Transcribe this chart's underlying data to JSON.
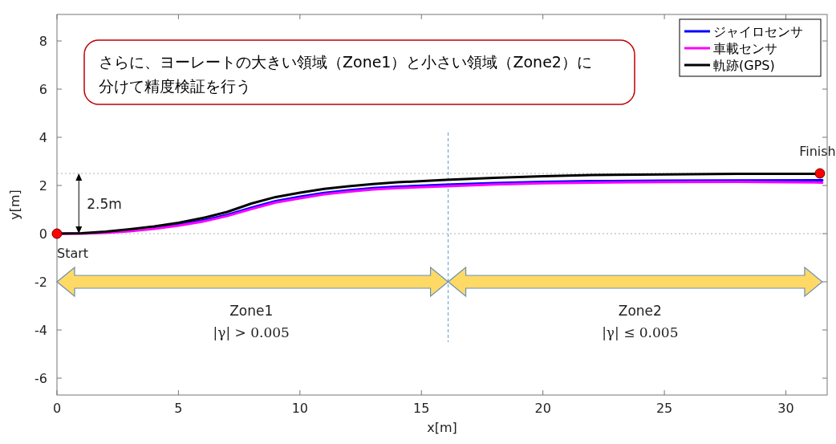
{
  "chart_data": {
    "type": "line",
    "xlabel": "x[m]",
    "ylabel": "y[m]",
    "xlim": [
      0,
      31.7
    ],
    "ylim": [
      -6.7,
      9.1
    ],
    "xticks": [
      0,
      5,
      10,
      15,
      20,
      25,
      30
    ],
    "yticks": [
      -6,
      -4,
      -2,
      0,
      2,
      4,
      6,
      8
    ],
    "legend": "top right",
    "grid": false,
    "series": [
      {
        "name": "ジャイロセンサ",
        "color": "#0000ff",
        "x": [
          4,
          5,
          6,
          7,
          8,
          9,
          10,
          11,
          12,
          13,
          14,
          16,
          18,
          20,
          22,
          25,
          28,
          31.5
        ],
        "values": [
          0.24,
          0.37,
          0.55,
          0.78,
          1.08,
          1.35,
          1.53,
          1.69,
          1.8,
          1.89,
          1.95,
          2.03,
          2.1,
          2.15,
          2.18,
          2.2,
          2.21,
          2.22
        ]
      },
      {
        "name": "車載センサ",
        "color": "#ff00ff",
        "x": [
          0,
          1,
          2,
          3,
          4,
          5,
          6,
          7,
          8,
          9,
          10,
          11,
          12,
          13,
          14,
          16,
          18,
          20,
          22,
          25,
          28,
          31.5
        ],
        "values": [
          0,
          0,
          0.03,
          0.1,
          0.2,
          0.33,
          0.5,
          0.73,
          1.02,
          1.29,
          1.47,
          1.63,
          1.74,
          1.83,
          1.89,
          1.97,
          2.04,
          2.09,
          2.12,
          2.14,
          2.15,
          2.12
        ]
      },
      {
        "name": "軌跡(GPS)",
        "color": "#000000",
        "x": [
          0,
          1,
          2,
          3,
          4,
          5,
          6,
          7,
          8,
          9,
          10,
          11,
          12,
          13,
          14,
          16,
          18,
          20,
          22,
          25,
          28,
          31.4
        ],
        "values": [
          0,
          0.02,
          0.08,
          0.18,
          0.3,
          0.45,
          0.65,
          0.9,
          1.25,
          1.52,
          1.7,
          1.86,
          1.97,
          2.06,
          2.13,
          2.23,
          2.32,
          2.38,
          2.43,
          2.46,
          2.48,
          2.48
        ]
      },
      {
        "type": "scatter",
        "color": "#ff0000",
        "marker": "circle",
        "x": [
          0,
          31.4
        ],
        "values": [
          0,
          2.5
        ]
      }
    ],
    "ref_lines": [
      {
        "axis": "y",
        "value": 0,
        "color": "#b0b0b0",
        "line_style": "dotted"
      },
      {
        "axis": "y",
        "value": 2.5,
        "color": "#b0b0b0",
        "line_style": "dotted"
      },
      {
        "axis": "x",
        "value": 16.1,
        "color": "#5b9bd5",
        "line_style": "dashed"
      }
    ],
    "annotations": [
      "さらに、ヨーレートの大きい領域（Zone1）と小さい領域（Zone2）に分けて精度検証を行う",
      {
        "text": "Start",
        "x": 0,
        "y": 0
      },
      {
        "text": "Finish",
        "x": 31.4,
        "y": 2.5
      },
      "2.5m",
      "Zone1",
      "|γ|  > 0.005",
      "Zone2",
      "|γ|  ≤ 0.005"
    ]
  }
}
